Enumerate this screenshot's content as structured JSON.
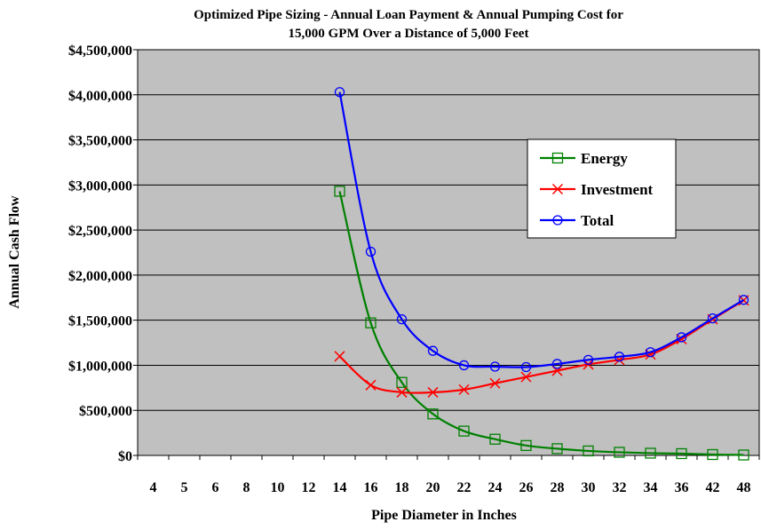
{
  "chart_data": {
    "type": "line",
    "title_line1": "Optimized Pipe Sizing - Annual Loan Payment & Annual Pumping Cost for",
    "title_line2": "15,000 GPM Over a Distance of 5,000 Feet",
    "xlabel": "Pipe Diameter in Inches",
    "ylabel": "Annual Cash Flow",
    "categories": [
      "4",
      "5",
      "6",
      "8",
      "10",
      "12",
      "14",
      "16",
      "18",
      "20",
      "22",
      "24",
      "26",
      "28",
      "30",
      "32",
      "34",
      "36",
      "42",
      "48"
    ],
    "ylim": [
      0,
      4500000
    ],
    "yticks": [
      0,
      500000,
      1000000,
      1500000,
      2000000,
      2500000,
      3000000,
      3500000,
      4000000,
      4500000
    ],
    "ytick_labels": [
      "$0",
      "$500,000",
      "$1,000,000",
      "$1,500,000",
      "$2,000,000",
      "$2,500,000",
      "$3,000,000",
      "$3,500,000",
      "$4,000,000",
      "$4,500,000"
    ],
    "grid": "horizontal",
    "legend_position": "right",
    "series": [
      {
        "name": "Energy",
        "color": "#008000",
        "marker": "square",
        "values": [
          null,
          null,
          null,
          null,
          null,
          null,
          2930000,
          1470000,
          810000,
          460000,
          270000,
          180000,
          110000,
          75000,
          50000,
          35000,
          25000,
          20000,
          10000,
          5000
        ]
      },
      {
        "name": "Investment",
        "color": "#ff0000",
        "marker": "x",
        "values": [
          null,
          null,
          null,
          null,
          null,
          null,
          1100000,
          780000,
          700000,
          700000,
          730000,
          800000,
          870000,
          940000,
          1010000,
          1060000,
          1120000,
          1290000,
          1510000,
          1720000
        ]
      },
      {
        "name": "Total",
        "color": "#0000ff",
        "marker": "circle",
        "values": [
          null,
          null,
          null,
          null,
          null,
          null,
          4030000,
          2260000,
          1510000,
          1160000,
          1000000,
          985000,
          980000,
          1015000,
          1060000,
          1095000,
          1145000,
          1310000,
          1520000,
          1725000
        ]
      }
    ]
  }
}
